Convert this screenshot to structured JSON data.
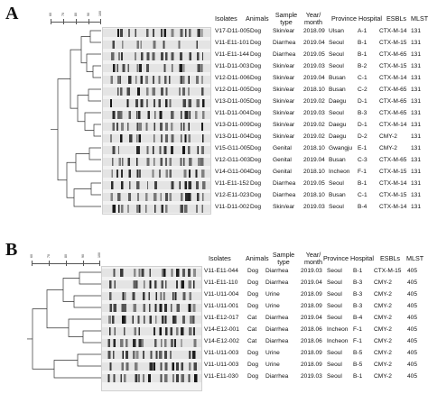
{
  "panels": [
    {
      "letter": "A",
      "scale_ticks": [
        "60",
        "70",
        "80",
        "90",
        "100"
      ],
      "headers": {
        "isolates": "Isolates",
        "animals": "Animals",
        "sample_type": "Sample type",
        "year_month": "Year/ month",
        "province": "Province",
        "hospital": "Hospital",
        "esbls": "ESBLs",
        "mlst": "MLST"
      },
      "rows": [
        {
          "isolate": "V17-D11-005",
          "animal": "Dog",
          "sample": "Skin/ear",
          "date": "2018.09",
          "province": "Ulsan",
          "hospital": "A-1",
          "esbl": "CTX-M-14",
          "mlst": "131"
        },
        {
          "isolate": "V11-E11-101",
          "animal": "Dog",
          "sample": "Diarrhea",
          "date": "2019.04",
          "province": "Seoul",
          "hospital": "B-1",
          "esbl": "CTX-M-15",
          "mlst": "131"
        },
        {
          "isolate": "V11-E11-144",
          "animal": "Dog",
          "sample": "Diarrhea",
          "date": "2019.05",
          "province": "Seoul",
          "hospital": "B-1",
          "esbl": "CTX-M-65",
          "mlst": "131"
        },
        {
          "isolate": "V11-D11-003",
          "animal": "Dog",
          "sample": "Skin/ear",
          "date": "2019.03",
          "province": "Seoul",
          "hospital": "B-2",
          "esbl": "CTX-M-15",
          "mlst": "131"
        },
        {
          "isolate": "V12-D11-006",
          "animal": "Dog",
          "sample": "Skin/ear",
          "date": "2019.04",
          "province": "Busan",
          "hospital": "C-1",
          "esbl": "CTX-M-14",
          "mlst": "131"
        },
        {
          "isolate": "V12-D11-005",
          "animal": "Dog",
          "sample": "Skin/ear",
          "date": "2018.10",
          "province": "Busan",
          "hospital": "C-2",
          "esbl": "CTX-M-65",
          "mlst": "131"
        },
        {
          "isolate": "V13-D11-005",
          "animal": "Dog",
          "sample": "Skin/ear",
          "date": "2019.02",
          "province": "Daegu",
          "hospital": "D-1",
          "esbl": "CTX-M-65",
          "mlst": "131"
        },
        {
          "isolate": "V11-D11-004",
          "animal": "Dog",
          "sample": "Skin/ear",
          "date": "2019.03",
          "province": "Seoul",
          "hospital": "B-3",
          "esbl": "CTX-M-65",
          "mlst": "131"
        },
        {
          "isolate": "V13-D11-009",
          "animal": "Dog",
          "sample": "Skin/ear",
          "date": "2019.02",
          "province": "Daegu",
          "hospital": "D-1",
          "esbl": "CTX-M-14",
          "mlst": "131"
        },
        {
          "isolate": "V13-D11-004",
          "animal": "Dog",
          "sample": "Skin/ear",
          "date": "2019.02",
          "province": "Daegu",
          "hospital": "D-2",
          "esbl": "CMY-2",
          "mlst": "131"
        },
        {
          "isolate": "V15-G11-005",
          "animal": "Dog",
          "sample": "Genital",
          "date": "2018.10",
          "province": "Gwangju",
          "hospital": "E-1",
          "esbl": "CMY-2",
          "mlst": "131"
        },
        {
          "isolate": "V12-G11-003",
          "animal": "Dog",
          "sample": "Genital",
          "date": "2019.04",
          "province": "Busan",
          "hospital": "C-3",
          "esbl": "CTX-M-65",
          "mlst": "131"
        },
        {
          "isolate": "V14-G11-004",
          "animal": "Dog",
          "sample": "Genital",
          "date": "2018.10",
          "province": "Incheon",
          "hospital": "F-1",
          "esbl": "CTX-M-15",
          "mlst": "131"
        },
        {
          "isolate": "V11-E11-152",
          "animal": "Dog",
          "sample": "Diarrhea",
          "date": "2019.05",
          "province": "Seoul",
          "hospital": "B-1",
          "esbl": "CTX-M-14",
          "mlst": "131"
        },
        {
          "isolate": "V12-E11-023",
          "animal": "Dog",
          "sample": "Diarrhea",
          "date": "2018.10",
          "province": "Busan",
          "hospital": "C-1",
          "esbl": "CTX-M-15",
          "mlst": "131"
        },
        {
          "isolate": "V11-D11-002",
          "animal": "Dog",
          "sample": "Skin/ear",
          "date": "2019.03",
          "province": "Seoul",
          "hospital": "B-4",
          "esbl": "CTX-M-14",
          "mlst": "131"
        }
      ]
    },
    {
      "letter": "B",
      "scale_ticks": [
        "60",
        "70",
        "80",
        "90",
        "100"
      ],
      "headers": {
        "isolates": "Isolates",
        "animals": "Animals",
        "sample_type": "Sample type",
        "year_month": "Year/ month",
        "province": "Province",
        "hospital": "Hospital",
        "esbls": "ESBLs",
        "mlst": "MLST"
      },
      "rows": [
        {
          "isolate": "V11-E11-044",
          "animal": "Dog",
          "sample": "Diarrhea",
          "date": "2019.03",
          "province": "Seoul",
          "hospital": "B-1",
          "esbl": "CTX-M-15",
          "mlst": "405"
        },
        {
          "isolate": "V11-E11-110",
          "animal": "Dog",
          "sample": "Diarrhea",
          "date": "2019.04",
          "province": "Seoul",
          "hospital": "B-3",
          "esbl": "CMY-2",
          "mlst": "405"
        },
        {
          "isolate": "V11-U11-004",
          "animal": "Dog",
          "sample": "Urine",
          "date": "2018.09",
          "province": "Seoul",
          "hospital": "B-3",
          "esbl": "CMY-2",
          "mlst": "405"
        },
        {
          "isolate": "V11-U11-001",
          "animal": "Dog",
          "sample": "Urine",
          "date": "2018.09",
          "province": "Seoul",
          "hospital": "B-3",
          "esbl": "CMY-2",
          "mlst": "405"
        },
        {
          "isolate": "V11-E12-017",
          "animal": "Cat",
          "sample": "Diarrhea",
          "date": "2019.04",
          "province": "Seoul",
          "hospital": "B-4",
          "esbl": "CMY-2",
          "mlst": "405"
        },
        {
          "isolate": "V14-E12-001",
          "animal": "Cat",
          "sample": "Diarrhea",
          "date": "2018.06",
          "province": "Incheon",
          "hospital": "F-1",
          "esbl": "CMY-2",
          "mlst": "405"
        },
        {
          "isolate": "V14-E12-002",
          "animal": "Cat",
          "sample": "Diarrhea",
          "date": "2018.06",
          "province": "Incheon",
          "hospital": "F-1",
          "esbl": "CMY-2",
          "mlst": "405"
        },
        {
          "isolate": "V11-U11-003",
          "animal": "Dog",
          "sample": "Urine",
          "date": "2018.09",
          "province": "Seoul",
          "hospital": "B-5",
          "esbl": "CMY-2",
          "mlst": "405"
        },
        {
          "isolate": "V11-U11-003",
          "animal": "Dog",
          "sample": "Urine",
          "date": "2018.09",
          "province": "Seoul",
          "hospital": "B-5",
          "esbl": "CMY-2",
          "mlst": "405"
        },
        {
          "isolate": "V11-E11-030",
          "animal": "Dog",
          "sample": "Diarrhea",
          "date": "2019.03",
          "province": "Seoul",
          "hospital": "B-1",
          "esbl": "CMY-2",
          "mlst": "405"
        }
      ]
    }
  ]
}
